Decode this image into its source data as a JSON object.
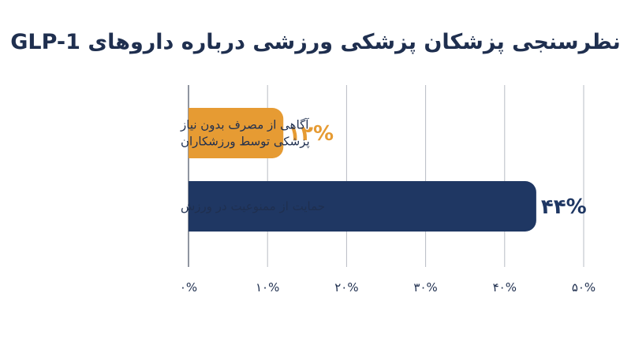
{
  "chart_data": {
    "type": "bar",
    "orientation": "horizontal",
    "title": "نظرسنجی پزشکان پزشکی ورزشی درباره داروهای GLP-1",
    "categories": [
      [
        "آگاهی از مصرف بدون نیاز",
        "پزشکی توسط ورزشکاران"
      ],
      [
        "حمایت از ممنوعیت در ورزش"
      ]
    ],
    "values": [
      12,
      44
    ],
    "data_labels": [
      "۱۲%",
      "۴۴%"
    ],
    "colors": [
      "#e69b33",
      "#1f3763"
    ],
    "xlim": [
      0,
      50
    ],
    "x_ticks": [
      0,
      10,
      20,
      30,
      40,
      50
    ],
    "x_tick_labels": [
      "۰%",
      "۱۰%",
      "۲۰%",
      "۳۰%",
      "۴۰%",
      "۵۰%"
    ],
    "grid": "vertical",
    "xlabel": "",
    "ylabel": ""
  }
}
